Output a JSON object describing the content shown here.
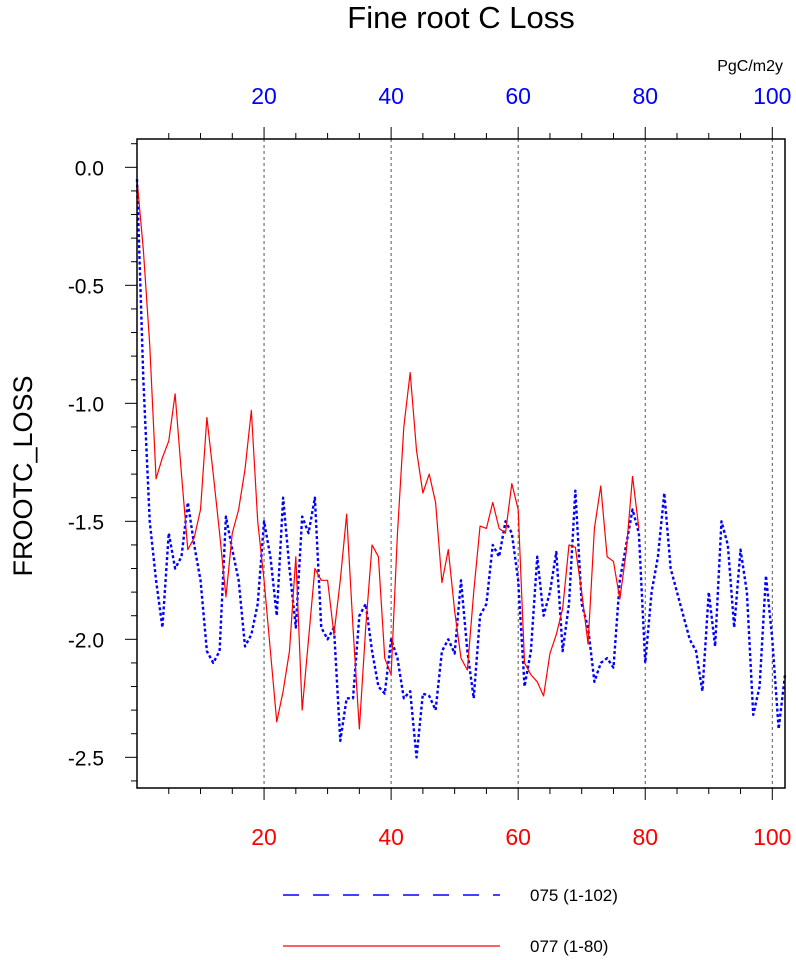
{
  "chart_data": {
    "type": "line",
    "title": "Fine root C Loss",
    "units": "PgC/m2y",
    "ylabel": "FROOTC_LOSS",
    "xlim": [
      0,
      102
    ],
    "ylim": [
      -2.63,
      0.12
    ],
    "grid": "x-dashed",
    "x_ticks_major": [
      20,
      40,
      60,
      80,
      100
    ],
    "y_ticks_major": [
      0.0,
      -0.5,
      -1.0,
      -1.5,
      -2.0,
      -2.5
    ],
    "y_tick_labels": [
      "0.0",
      "-0.5",
      "-1.0",
      "-1.5",
      "-2.0",
      "-2.5"
    ],
    "top_axis": {
      "ticks": [
        20,
        40,
        60,
        80,
        100
      ],
      "labels": [
        "20",
        "40",
        "60",
        "80",
        "100"
      ],
      "color": "#0000ff"
    },
    "bottom_axis": {
      "ticks": [
        20,
        40,
        60,
        80,
        100
      ],
      "labels": [
        "20",
        "40",
        "60",
        "80",
        "100"
      ],
      "color": "#ff0000"
    },
    "legend_placement": "bottom",
    "series": [
      {
        "name": "075 (1-102)",
        "color": "#0000ff",
        "style": "dashed",
        "x_start": 0,
        "values": [
          -0.05,
          -0.9,
          -1.5,
          -1.75,
          -1.95,
          -1.55,
          -1.7,
          -1.65,
          -1.42,
          -1.6,
          -1.75,
          -2.05,
          -2.1,
          -2.05,
          -1.48,
          -1.62,
          -1.75,
          -2.03,
          -1.98,
          -1.85,
          -1.5,
          -1.65,
          -1.9,
          -1.4,
          -1.7,
          -1.95,
          -1.48,
          -1.55,
          -1.4,
          -1.95,
          -2.0,
          -1.95,
          -2.43,
          -2.25,
          -2.25,
          -1.9,
          -1.85,
          -2.05,
          -2.2,
          -2.23,
          -2.0,
          -2.08,
          -2.25,
          -2.22,
          -2.5,
          -2.23,
          -2.24,
          -2.3,
          -2.05,
          -2.0,
          -2.06,
          -1.75,
          -2.05,
          -2.25,
          -1.9,
          -1.85,
          -1.6,
          -1.65,
          -1.5,
          -1.55,
          -1.75,
          -2.2,
          -2.05,
          -1.65,
          -1.9,
          -1.8,
          -1.63,
          -2.05,
          -1.85,
          -1.37,
          -1.85,
          -1.95,
          -2.18,
          -2.1,
          -2.08,
          -2.12,
          -1.75,
          -1.6,
          -1.45,
          -1.55,
          -2.1,
          -1.8,
          -1.65,
          -1.38,
          -1.7,
          -1.8,
          -1.9,
          -2.0,
          -2.05,
          -2.22,
          -1.8,
          -2.03,
          -1.5,
          -1.6,
          -1.95,
          -1.62,
          -1.8,
          -2.32,
          -2.2,
          -1.73,
          -2.0,
          -2.38,
          -2.15
        ]
      },
      {
        "name": "077 (1-80)",
        "color": "#ff0000",
        "style": "solid",
        "x_start": 0,
        "values": [
          -0.05,
          -0.35,
          -0.75,
          -1.32,
          -1.23,
          -1.16,
          -0.96,
          -1.3,
          -1.62,
          -1.57,
          -1.45,
          -1.06,
          -1.3,
          -1.55,
          -1.82,
          -1.55,
          -1.45,
          -1.28,
          -1.03,
          -1.5,
          -1.75,
          -2.05,
          -2.35,
          -2.22,
          -2.05,
          -1.65,
          -2.3,
          -2.0,
          -1.7,
          -1.75,
          -1.75,
          -1.98,
          -1.75,
          -1.47,
          -1.95,
          -2.38,
          -1.95,
          -1.6,
          -1.65,
          -2.08,
          -2.15,
          -1.55,
          -1.1,
          -0.87,
          -1.2,
          -1.38,
          -1.3,
          -1.42,
          -1.76,
          -1.62,
          -1.88,
          -2.08,
          -2.13,
          -1.8,
          -1.52,
          -1.53,
          -1.42,
          -1.53,
          -1.55,
          -1.34,
          -1.45,
          -2.1,
          -2.15,
          -2.18,
          -2.24,
          -2.06,
          -1.98,
          -1.87,
          -1.6,
          -1.61,
          -1.8,
          -2.02,
          -1.53,
          -1.35,
          -1.65,
          -1.67,
          -1.83,
          -1.63,
          -1.31,
          -1.53
        ]
      }
    ]
  }
}
